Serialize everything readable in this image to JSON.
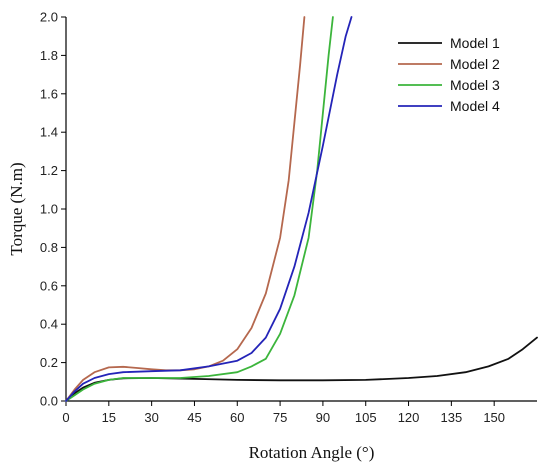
{
  "chart_data": {
    "type": "line",
    "xlabel": "Rotation Angle (°)",
    "ylabel": "Torque (N.m)",
    "xlim": [
      0,
      165
    ],
    "ylim": [
      0,
      2.0
    ],
    "x_ticks": [
      0,
      15,
      30,
      45,
      60,
      75,
      90,
      105,
      120,
      135,
      150
    ],
    "y_ticks": [
      0.0,
      0.2,
      0.4,
      0.6,
      0.8,
      1.0,
      1.2,
      1.4,
      1.6,
      1.8,
      2.0
    ],
    "x_tick_labels": [
      "0",
      "15",
      "30",
      "45",
      "60",
      "75",
      "90",
      "105",
      "120",
      "135",
      "150"
    ],
    "y_tick_labels": [
      "0.0",
      "0.2",
      "0.4",
      "0.6",
      "0.8",
      "1.0",
      "1.2",
      "1.4",
      "1.6",
      "1.8",
      "2.0"
    ],
    "legend_position": "top-right",
    "grid": false,
    "series": [
      {
        "name": "Model 1",
        "color": "#111111",
        "points": [
          [
            0,
            0
          ],
          [
            3,
            0.04
          ],
          [
            6,
            0.07
          ],
          [
            10,
            0.095
          ],
          [
            15,
            0.11
          ],
          [
            20,
            0.118
          ],
          [
            30,
            0.12
          ],
          [
            45,
            0.115
          ],
          [
            60,
            0.11
          ],
          [
            75,
            0.108
          ],
          [
            90,
            0.108
          ],
          [
            105,
            0.11
          ],
          [
            120,
            0.12
          ],
          [
            130,
            0.13
          ],
          [
            140,
            0.15
          ],
          [
            148,
            0.18
          ],
          [
            155,
            0.22
          ],
          [
            160,
            0.27
          ],
          [
            165,
            0.33
          ]
        ]
      },
      {
        "name": "Model 2",
        "color": "#b5684e",
        "points": [
          [
            0,
            0
          ],
          [
            3,
            0.06
          ],
          [
            6,
            0.11
          ],
          [
            10,
            0.15
          ],
          [
            15,
            0.175
          ],
          [
            20,
            0.178
          ],
          [
            25,
            0.172
          ],
          [
            30,
            0.165
          ],
          [
            35,
            0.16
          ],
          [
            40,
            0.16
          ],
          [
            45,
            0.165
          ],
          [
            50,
            0.18
          ],
          [
            55,
            0.21
          ],
          [
            60,
            0.27
          ],
          [
            65,
            0.38
          ],
          [
            70,
            0.56
          ],
          [
            75,
            0.85
          ],
          [
            78,
            1.15
          ],
          [
            80,
            1.45
          ],
          [
            82,
            1.75
          ],
          [
            83.5,
            2.0
          ]
        ]
      },
      {
        "name": "Model 3",
        "color": "#3cb53c",
        "points": [
          [
            0,
            0
          ],
          [
            3,
            0.03
          ],
          [
            6,
            0.06
          ],
          [
            10,
            0.09
          ],
          [
            15,
            0.11
          ],
          [
            20,
            0.12
          ],
          [
            30,
            0.12
          ],
          [
            40,
            0.12
          ],
          [
            50,
            0.13
          ],
          [
            60,
            0.15
          ],
          [
            65,
            0.18
          ],
          [
            70,
            0.22
          ],
          [
            75,
            0.35
          ],
          [
            80,
            0.55
          ],
          [
            85,
            0.85
          ],
          [
            88,
            1.2
          ],
          [
            90,
            1.5
          ],
          [
            92,
            1.8
          ],
          [
            93.5,
            2.0
          ]
        ]
      },
      {
        "name": "Model 4",
        "color": "#2424b8",
        "points": [
          [
            0,
            0
          ],
          [
            3,
            0.05
          ],
          [
            6,
            0.09
          ],
          [
            10,
            0.12
          ],
          [
            15,
            0.14
          ],
          [
            20,
            0.15
          ],
          [
            30,
            0.155
          ],
          [
            40,
            0.16
          ],
          [
            50,
            0.18
          ],
          [
            60,
            0.21
          ],
          [
            65,
            0.25
          ],
          [
            70,
            0.33
          ],
          [
            75,
            0.48
          ],
          [
            80,
            0.7
          ],
          [
            85,
            0.98
          ],
          [
            90,
            1.33
          ],
          [
            95,
            1.7
          ],
          [
            98,
            1.9
          ],
          [
            100,
            2.0
          ]
        ]
      }
    ]
  }
}
